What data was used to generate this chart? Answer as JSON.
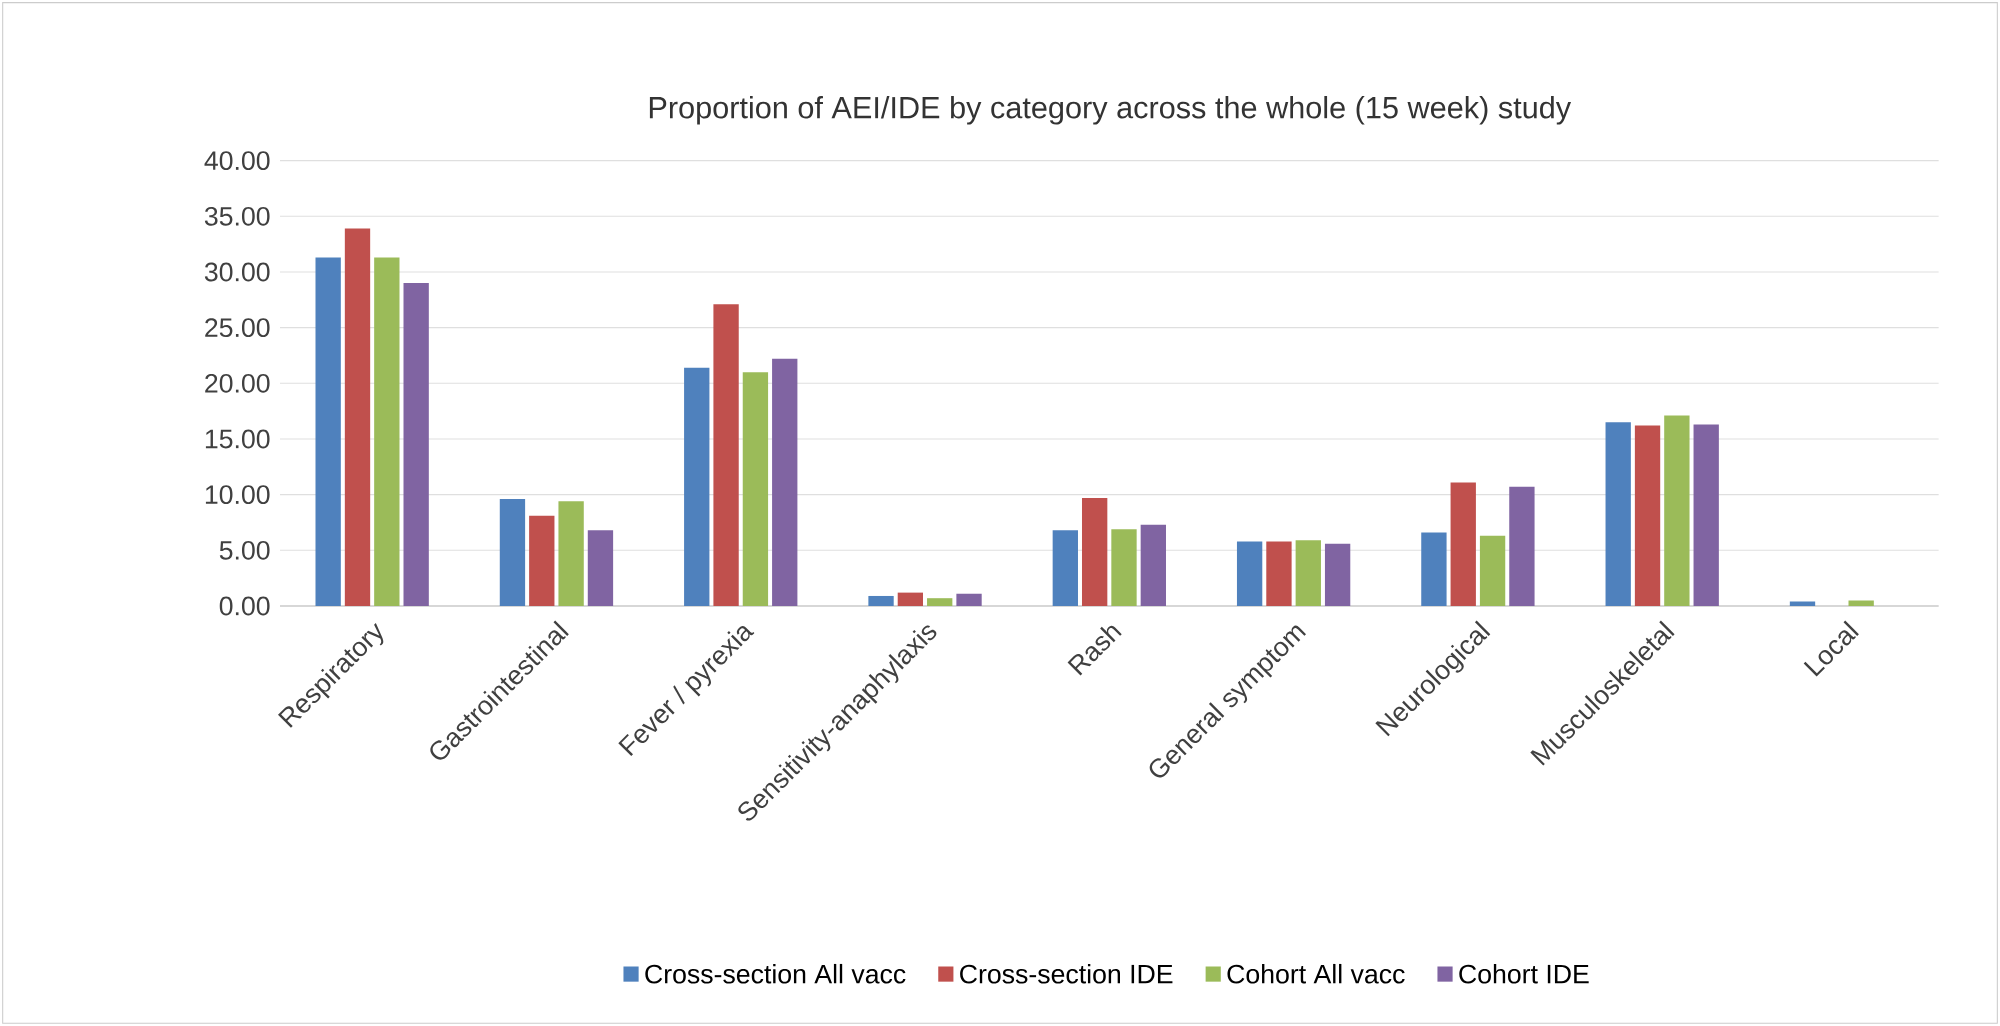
{
  "chart_data": {
    "type": "bar",
    "title": "Proportion of AEI/IDE by category across the whole (15 week) study",
    "categories": [
      "Respiratory",
      "Gastrointestinal",
      "Fever / pyrexia",
      "Sensitivity-anaphylaxis",
      "Rash",
      "General symptom",
      "Neurological",
      "Musculoskeletal",
      "Local"
    ],
    "series": [
      {
        "name": "Cross-section All vacc",
        "color": "#4f81bd",
        "values": [
          31.3,
          9.6,
          21.4,
          0.9,
          6.8,
          5.8,
          6.6,
          16.5,
          0.4
        ]
      },
      {
        "name": "Cross-section IDE",
        "color": "#c0504d",
        "values": [
          33.9,
          8.1,
          27.1,
          1.2,
          9.7,
          5.8,
          11.1,
          16.2,
          0
        ]
      },
      {
        "name": "Cohort All vacc",
        "color": "#9bbb59",
        "values": [
          31.3,
          9.4,
          21.0,
          0.7,
          6.9,
          5.9,
          6.3,
          17.1,
          0.5
        ]
      },
      {
        "name": "Cohort IDE",
        "color": "#8064a2",
        "values": [
          29.0,
          6.8,
          22.2,
          1.1,
          7.3,
          5.6,
          10.7,
          16.3,
          0
        ]
      }
    ],
    "ylim": [
      0,
      40
    ],
    "yticks": [
      {
        "value": 0,
        "label": "0.00"
      },
      {
        "value": 5,
        "label": "5.00"
      },
      {
        "value": 10,
        "label": "10.00"
      },
      {
        "value": 15,
        "label": "15.00"
      },
      {
        "value": 20,
        "label": "20.00"
      },
      {
        "value": 25,
        "label": "25.00"
      },
      {
        "value": 30,
        "label": "30.00"
      },
      {
        "value": 35,
        "label": "35.00"
      },
      {
        "value": 40,
        "label": "40.00"
      }
    ],
    "grid": "y",
    "legend": "bottom"
  }
}
